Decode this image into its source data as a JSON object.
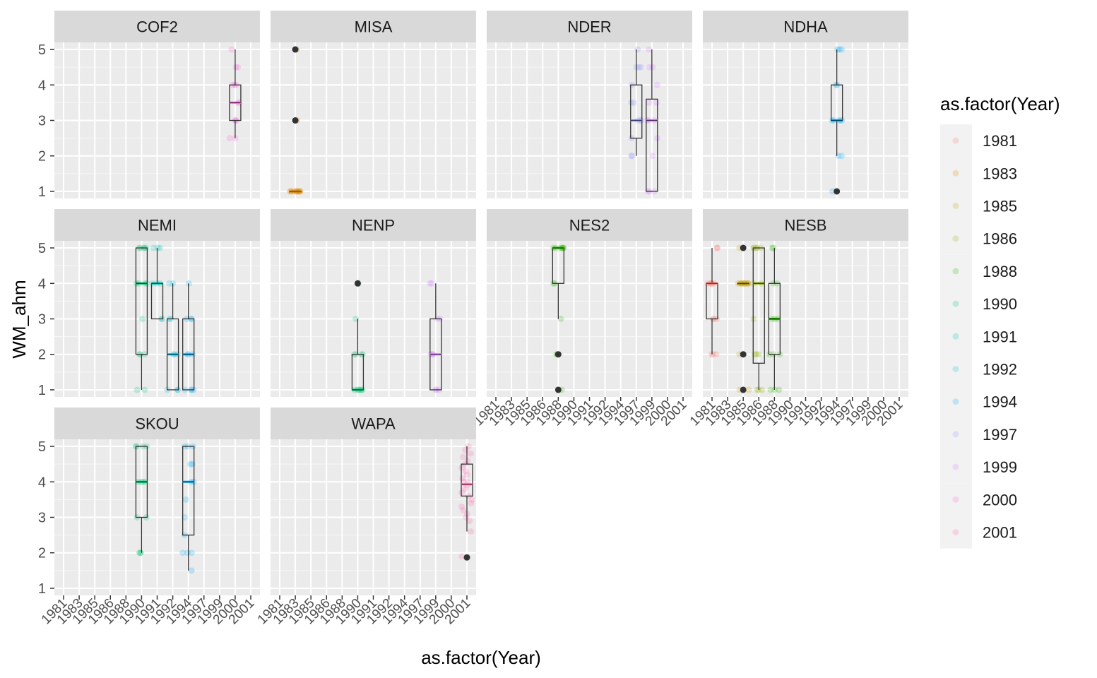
{
  "chart_data": {
    "type": "box",
    "xlabel": "as.factor(Year)",
    "ylabel": "WM_ahm",
    "legend_title": "as.factor(Year)",
    "legend_position": "right",
    "grid": true,
    "ylim": [
      0.8,
      5.2
    ],
    "categories": [
      "1981",
      "1983",
      "1985",
      "1986",
      "1988",
      "1990",
      "1991",
      "1992",
      "1994",
      "1997",
      "1999",
      "2000",
      "2001"
    ],
    "yticks": [
      1,
      2,
      3,
      4,
      5
    ],
    "colors": {
      "1981": "#F8766D",
      "1983": "#E18A00",
      "1985": "#BE9C00",
      "1986": "#8CAB00",
      "1988": "#24B700",
      "1990": "#00BE70",
      "1991": "#00C1AB",
      "1992": "#00BBDA",
      "1994": "#00ACFC",
      "1997": "#8B93FF",
      "1999": "#D575FE",
      "2000": "#F962DD",
      "2001": "#FF65AC"
    },
    "facets": [
      {
        "name": "COF2",
        "points": [],
        "boxes": [
          {
            "year": "2000",
            "q1": 3,
            "median": 3.5,
            "q3": 4,
            "lower": 2.5,
            "upper": 5,
            "outliers": [],
            "jitter": [
              5,
              4.5,
              4.5,
              4,
              4,
              3.5,
              3.5,
              3,
              3,
              2.5,
              2.5,
              4,
              3
            ]
          }
        ]
      },
      {
        "name": "MISA",
        "boxes": [
          {
            "year": "1983",
            "q1": 1,
            "median": 1,
            "q3": 1,
            "lower": 1,
            "upper": 1,
            "outliers": [
              5,
              3
            ],
            "jitter": [
              1,
              1,
              1,
              1,
              1,
              1,
              1,
              1,
              1,
              1,
              1,
              1,
              3,
              3,
              5
            ]
          }
        ]
      },
      {
        "name": "NDER",
        "boxes": [
          {
            "year": "1997",
            "q1": 2.5,
            "median": 3,
            "q3": 4,
            "lower": 2,
            "upper": 5,
            "outliers": [],
            "jitter": [
              5,
              4.5,
              4.5,
              4.5,
              4,
              3.5,
              3,
              3,
              3,
              2.5,
              2,
              2,
              3.5
            ]
          },
          {
            "year": "1999",
            "q1": 1,
            "median": 3,
            "q3": 3.6,
            "lower": 1,
            "upper": 5,
            "outliers": [],
            "jitter": [
              5,
              4.5,
              4.5,
              4,
              3.5,
              3,
              3,
              2.5,
              2,
              1,
              1,
              1,
              3,
              3.5
            ]
          }
        ]
      },
      {
        "name": "NDHA",
        "boxes": [
          {
            "year": "1994",
            "q1": 3,
            "median": 3,
            "q3": 4,
            "lower": 2,
            "upper": 5,
            "outliers": [
              1
            ],
            "jitter": [
              5,
              5,
              5,
              4,
              4,
              3,
              3,
              3,
              3,
              2,
              2,
              1,
              3
            ]
          }
        ]
      },
      {
        "name": "NEMI",
        "boxes": [
          {
            "year": "1990",
            "q1": 2,
            "median": 4,
            "q3": 5,
            "lower": 1,
            "upper": 5,
            "outliers": [],
            "jitter": [
              5,
              5,
              5,
              5,
              4,
              4,
              4,
              3,
              2,
              2,
              2,
              1,
              1,
              5,
              4
            ]
          },
          {
            "year": "1991",
            "q1": 3,
            "median": 4,
            "q3": 4,
            "lower": 3,
            "upper": 5,
            "outliers": [],
            "jitter": [
              5,
              5,
              4,
              4,
              4,
              3,
              3,
              5
            ]
          },
          {
            "year": "1992",
            "q1": 1,
            "median": 2,
            "q3": 3,
            "lower": 1,
            "upper": 4,
            "outliers": [],
            "jitter": [
              4,
              4,
              3,
              3,
              2,
              2,
              2,
              1,
              1,
              1
            ]
          },
          {
            "year": "1994",
            "q1": 1,
            "median": 2,
            "q3": 3,
            "lower": 1,
            "upper": 4,
            "outliers": [],
            "jitter": [
              4,
              3,
              3,
              3,
              2,
              2,
              2,
              1,
              1,
              1,
              1
            ]
          }
        ]
      },
      {
        "name": "NENP",
        "boxes": [
          {
            "year": "1990",
            "q1": 1,
            "median": 1,
            "q3": 2,
            "lower": 1,
            "upper": 3,
            "outliers": [
              4
            ],
            "jitter": [
              3,
              2,
              2,
              2,
              2,
              1,
              1,
              1,
              1,
              1,
              1,
              4
            ]
          },
          {
            "year": "1999",
            "q1": 1,
            "median": 2,
            "q3": 3,
            "lower": 1,
            "upper": 4,
            "outliers": [],
            "jitter": [
              4,
              4,
              3,
              3,
              2,
              2,
              2,
              1,
              1,
              1
            ]
          }
        ]
      },
      {
        "name": "NES2",
        "boxes": [
          {
            "year": "1988",
            "q1": 4,
            "median": 5,
            "q3": 5,
            "lower": 3,
            "upper": 5,
            "outliers": [
              2,
              1
            ],
            "jitter": [
              5,
              5,
              5,
              5,
              5,
              5,
              5,
              4,
              4,
              3,
              2,
              2,
              1
            ]
          }
        ]
      },
      {
        "name": "NESB",
        "boxes": [
          {
            "year": "1981",
            "q1": 3,
            "median": 4,
            "q3": 4,
            "lower": 2,
            "upper": 5,
            "outliers": [],
            "jitter": [
              5,
              5,
              4,
              4,
              4,
              4,
              4,
              3,
              3,
              3,
              2,
              2,
              2
            ]
          },
          {
            "year": "1985",
            "q1": 4,
            "median": 4,
            "q3": 4,
            "lower": 4,
            "upper": 4,
            "outliers": [
              5,
              2,
              1
            ],
            "jitter": [
              4,
              4,
              4,
              4,
              4,
              4,
              4,
              4,
              4,
              4,
              4,
              5,
              2,
              1,
              1
            ]
          },
          {
            "year": "1986",
            "q1": 1.75,
            "median": 4,
            "q3": 5,
            "lower": 1,
            "upper": 5,
            "outliers": [],
            "jitter": [
              5,
              5,
              5,
              5,
              5,
              4,
              4,
              3,
              2,
              2,
              2,
              1,
              1,
              1
            ]
          },
          {
            "year": "1988",
            "q1": 2,
            "median": 3,
            "q3": 4,
            "lower": 1,
            "upper": 5,
            "outliers": [],
            "jitter": [
              5,
              5,
              4,
              4,
              3,
              3,
              3,
              2,
              2,
              2,
              1,
              1,
              1
            ]
          }
        ]
      },
      {
        "name": "SKOU",
        "boxes": [
          {
            "year": "1990",
            "q1": 3,
            "median": 4,
            "q3": 5,
            "lower": 2,
            "upper": 5,
            "outliers": [],
            "jitter": [
              5,
              5,
              5,
              5,
              4,
              4,
              4,
              4,
              3,
              3,
              2,
              2,
              2
            ]
          },
          {
            "year": "1994",
            "q1": 2.5,
            "median": 4,
            "q3": 5,
            "lower": 1.5,
            "upper": 5,
            "outliers": [],
            "jitter": [
              5,
              5,
              5,
              4.5,
              4.5,
              4,
              4,
              3.5,
              3,
              2.5,
              2,
              2,
              2,
              1.5
            ]
          }
        ]
      },
      {
        "name": "WAPA",
        "boxes": [
          {
            "year": "2001",
            "q1": 3.6,
            "median": 3.93,
            "q3": 4.5,
            "lower": 2.6,
            "upper": 5,
            "outliers": [
              1.87
            ],
            "jitter": [
              5,
              4.9,
              4.8,
              4.7,
              4.6,
              4.5,
              4.4,
              4.3,
              4.2,
              4.1,
              4,
              4,
              3.9,
              3.8,
              3.7,
              3.6,
              3.5,
              3.4,
              3.3,
              3.2,
              3.1,
              3,
              2.9,
              2.6,
              1.9
            ]
          }
        ]
      }
    ]
  }
}
